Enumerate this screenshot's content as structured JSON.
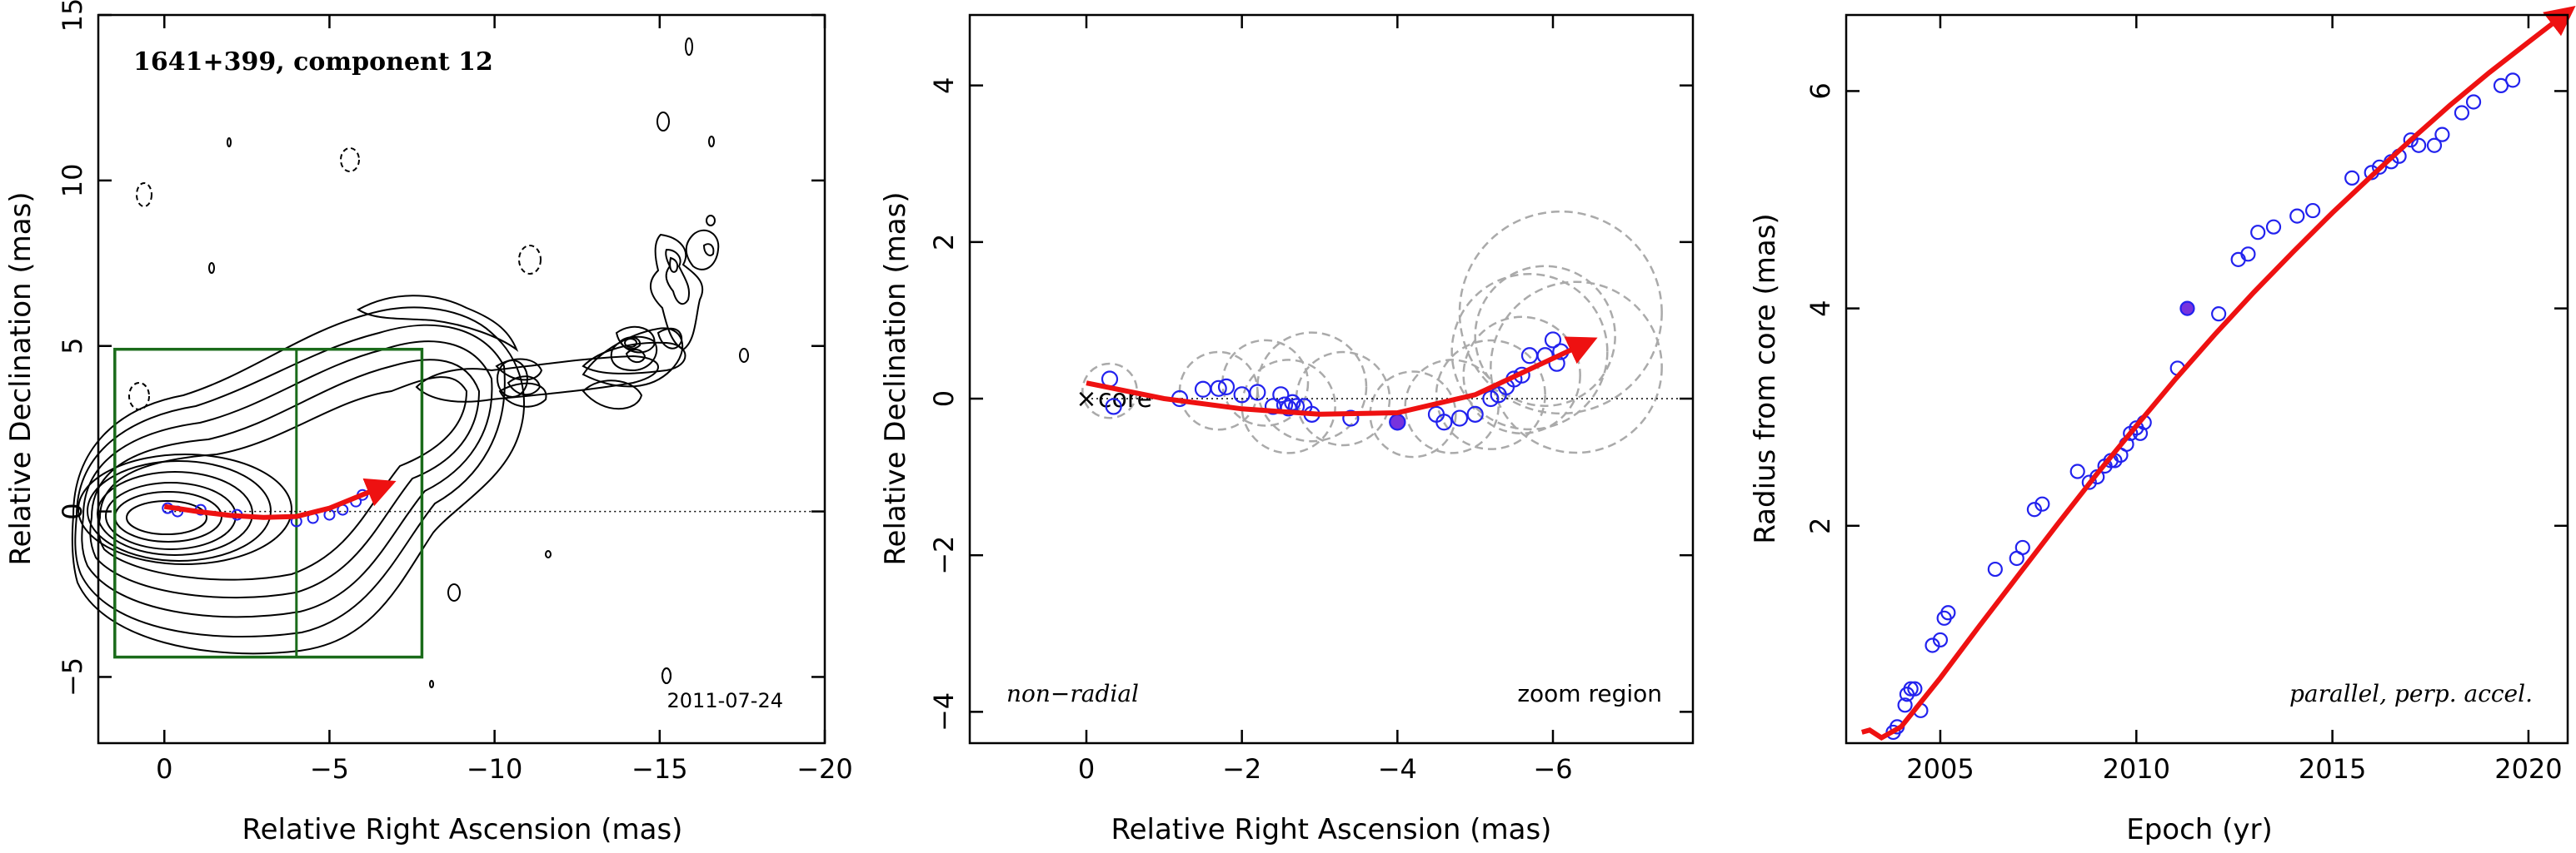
{
  "colors": {
    "axis": "#000000",
    "contour": "#000000",
    "box": "#1a6b1a",
    "fit": "#ee1111",
    "points": "#2222ee",
    "filled_point": "#7733dd",
    "gaussians": "#aaaaaa"
  },
  "chart_data": [
    {
      "type": "contour",
      "panel": "left",
      "annotations": {
        "source": "1641+399, component 12",
        "date": "2011-07-24"
      },
      "xlabel": "Relative Right Ascension (mas)",
      "ylabel": "Relative Declination (mas)",
      "xlim": [
        2,
        -20
      ],
      "ylim": [
        -7,
        15
      ],
      "xticks": [
        0,
        -5,
        -10,
        -15,
        -20
      ],
      "yticks": [
        -5,
        0,
        5,
        10,
        15
      ],
      "xtick_labels": [
        "0",
        "−5",
        "−10",
        "−15",
        "−20"
      ],
      "ytick_labels": [
        "−5",
        "0",
        "5",
        "10",
        "15"
      ],
      "zoom_box": {
        "x": [
          1.5,
          -7.8
        ],
        "y": [
          -4.4,
          4.9
        ]
      },
      "fit_track": {
        "x": [
          0,
          -1,
          -2,
          -3,
          -4,
          -5,
          -6.6
        ],
        "y": [
          0.15,
          0.0,
          -0.12,
          -0.18,
          -0.15,
          0.1,
          0.75
        ]
      },
      "points": {
        "x": [
          -0.1,
          -0.4,
          -1.1,
          -2.2,
          -4.0,
          -4.5,
          -5.0,
          -5.4,
          -5.8,
          -6.0
        ],
        "y": [
          0.1,
          0.0,
          0.05,
          -0.1,
          -0.3,
          -0.2,
          -0.1,
          0.05,
          0.3,
          0.5
        ]
      }
    },
    {
      "type": "scatter",
      "panel": "middle",
      "annotations": {
        "core": "core",
        "left": "non−radial",
        "right": "zoom region"
      },
      "xlabel": "Relative Right Ascension (mas)",
      "ylabel": "Relative Declination (mas)",
      "xlim": [
        1.5,
        -7.8
      ],
      "ylim": [
        -4.4,
        4.9
      ],
      "xticks": [
        0,
        -2,
        -4,
        -6
      ],
      "yticks": [
        -4,
        -2,
        0,
        2,
        4
      ],
      "xtick_labels": [
        "0",
        "−2",
        "−4",
        "−6"
      ],
      "ytick_labels": [
        "−4",
        "−2",
        "0",
        "2",
        "4"
      ],
      "fit_track": {
        "x": [
          0,
          -1,
          -2,
          -3,
          -4,
          -5,
          -6.4
        ],
        "y": [
          0.2,
          0.0,
          -0.13,
          -0.2,
          -0.18,
          0.05,
          0.7
        ]
      },
      "points": {
        "x": [
          -0.3,
          -0.35,
          -1.2,
          -1.5,
          -1.7,
          -1.8,
          -2.0,
          -2.2,
          -2.4,
          -2.5,
          -2.55,
          -2.6,
          -2.65,
          -2.7,
          -2.8,
          -2.9,
          -3.4,
          -4.0,
          -4.5,
          -4.6,
          -4.8,
          -5.0,
          -5.2,
          -5.3,
          -5.4,
          -5.5,
          -5.6,
          -5.7,
          -5.9,
          -6.0,
          -6.05,
          -6.1
        ],
        "y": [
          0.25,
          -0.1,
          0.0,
          0.12,
          0.13,
          0.15,
          0.05,
          0.08,
          -0.1,
          0.05,
          -0.08,
          -0.12,
          -0.05,
          -0.1,
          -0.1,
          -0.2,
          -0.25,
          -0.3,
          -0.2,
          -0.3,
          -0.25,
          -0.2,
          0.0,
          0.05,
          0.15,
          0.25,
          0.3,
          0.55,
          0.55,
          0.75,
          0.45,
          0.6
        ]
      },
      "filled_points": {
        "x": [
          -4.0
        ],
        "y": [
          -0.3
        ]
      },
      "gaussian_components": [
        {
          "x": -0.3,
          "y": 0.1,
          "r": 0.35
        },
        {
          "x": -1.7,
          "y": 0.1,
          "r": 0.5
        },
        {
          "x": -2.3,
          "y": 0.2,
          "r": 0.55
        },
        {
          "x": -2.6,
          "y": -0.1,
          "r": 0.6
        },
        {
          "x": -2.9,
          "y": 0.15,
          "r": 0.7
        },
        {
          "x": -3.3,
          "y": 0.0,
          "r": 0.6
        },
        {
          "x": -4.2,
          "y": -0.2,
          "r": 0.55
        },
        {
          "x": -4.7,
          "y": -0.1,
          "r": 0.6
        },
        {
          "x": -5.2,
          "y": 0.05,
          "r": 0.7
        },
        {
          "x": -5.6,
          "y": 0.3,
          "r": 0.75
        },
        {
          "x": -5.9,
          "y": 0.8,
          "r": 0.9
        },
        {
          "x": -6.1,
          "y": 1.1,
          "r": 1.3
        },
        {
          "x": -5.7,
          "y": 0.6,
          "r": 1.0
        },
        {
          "x": -6.3,
          "y": 0.4,
          "r": 1.1
        }
      ]
    },
    {
      "type": "scatter",
      "panel": "right",
      "annotations": {
        "model": "parallel, perp. accel."
      },
      "xlabel": "Epoch (yr)",
      "ylabel": "Radius from core (mas)",
      "xlim": [
        2002.6,
        2021
      ],
      "ylim": [
        0,
        6.7
      ],
      "xticks": [
        2005,
        2010,
        2015,
        2020
      ],
      "yticks": [
        2,
        4,
        6
      ],
      "xtick_labels": [
        "2005",
        "2010",
        "2015",
        "2020"
      ],
      "ytick_labels": [
        "2",
        "4",
        "6"
      ],
      "fit_curve": {
        "x": [
          2003.0,
          2003.2,
          2003.5,
          2004.0,
          2005.0,
          2006.0,
          2007.0,
          2008.0,
          2009.0,
          2010.0,
          2011.0,
          2012.0,
          2013.0,
          2014.0,
          2015.0,
          2016.0,
          2017.0,
          2018.0,
          2019.0,
          2020.0,
          2020.9
        ],
        "y": [
          0.1,
          0.12,
          0.05,
          0.15,
          0.6,
          1.08,
          1.55,
          2.02,
          2.48,
          2.92,
          3.35,
          3.76,
          4.15,
          4.52,
          4.88,
          5.22,
          5.55,
          5.87,
          6.17,
          6.45,
          6.7
        ]
      },
      "points": {
        "x": [
          2003.8,
          2003.9,
          2004.1,
          2004.15,
          2004.25,
          2004.35,
          2004.5,
          2004.8,
          2005.0,
          2005.1,
          2005.2,
          2006.4,
          2006.95,
          2007.1,
          2007.4,
          2007.6,
          2008.5,
          2008.8,
          2009.0,
          2009.2,
          2009.35,
          2009.45,
          2009.6,
          2009.75,
          2009.85,
          2010.0,
          2010.1,
          2010.2,
          2011.05,
          2012.1,
          2012.6,
          2012.85,
          2013.1,
          2013.5,
          2014.1,
          2014.5,
          2015.5,
          2016.0,
          2016.2,
          2016.5,
          2016.7,
          2017.0,
          2017.2,
          2017.6,
          2017.8,
          2018.3,
          2018.6,
          2019.3,
          2019.6
        ],
        "y": [
          0.1,
          0.15,
          0.35,
          0.45,
          0.5,
          0.5,
          0.3,
          0.9,
          0.95,
          1.15,
          1.2,
          1.6,
          1.7,
          1.8,
          2.15,
          2.2,
          2.5,
          2.4,
          2.45,
          2.55,
          2.6,
          2.6,
          2.65,
          2.75,
          2.85,
          2.9,
          2.85,
          2.95,
          3.45,
          3.95,
          4.45,
          4.5,
          4.7,
          4.75,
          4.85,
          4.9,
          5.2,
          5.25,
          5.3,
          5.35,
          5.4,
          5.55,
          5.5,
          5.5,
          5.6,
          5.8,
          5.9,
          6.05,
          6.1
        ]
      },
      "filled_points": {
        "x": [
          2011.3
        ],
        "y": [
          4.0
        ]
      }
    }
  ]
}
